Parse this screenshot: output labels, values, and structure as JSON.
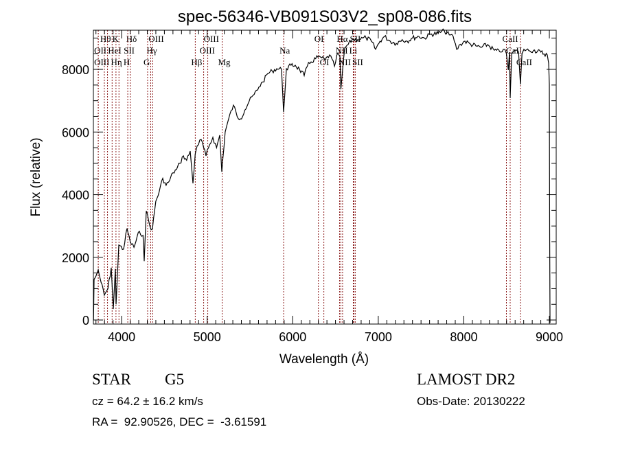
{
  "chart_data": {
    "type": "line",
    "title": "spec-56346-VB091S03V2_sp08-086.fits",
    "xlabel": "Wavelength (Å)",
    "ylabel": "Flux (relative)",
    "xlim": [
      3670,
      9080
    ],
    "ylim": [
      -130,
      9250
    ],
    "xticks": [
      4000,
      5000,
      6000,
      7000,
      8000,
      9000
    ],
    "yticks": [
      0,
      2000,
      4000,
      6000,
      8000
    ],
    "x_minor_step": 100,
    "y_minor_step": 500,
    "grid": false,
    "line_color": "#000000",
    "marker_color": "#8b1a1a",
    "series": [
      {
        "name": "spectrum",
        "x": [
          3672,
          3678,
          3700,
          3726,
          3760,
          3798,
          3840,
          3879,
          3903,
          3927,
          3935,
          3967,
          4023,
          4063,
          4100,
          4144,
          4208,
          4250,
          4264,
          4288,
          4330,
          4360,
          4400,
          4440,
          4481,
          4520,
          4561,
          4600,
          4641,
          4680,
          4722,
          4760,
          4802,
          4834,
          4860,
          4882,
          4930,
          4986,
          5030,
          5067,
          5110,
          5147,
          5171,
          5210,
          5251,
          5307,
          5350,
          5388,
          5440,
          5492,
          5550,
          5604,
          5650,
          5709,
          5760,
          5813,
          5869,
          5893,
          5926,
          5980,
          6030,
          6080,
          6134,
          6170,
          6215,
          6295,
          6327,
          6380,
          6431,
          6488,
          6528,
          6552,
          6563,
          6608,
          6650,
          6696,
          6760,
          6820,
          6857,
          6920,
          6969,
          7020,
          7073,
          7140,
          7210,
          7280,
          7338,
          7400,
          7475,
          7540,
          7611,
          7700,
          7772,
          7830,
          7876,
          7916,
          7960,
          8013,
          8080,
          8141,
          8200,
          8277,
          8357,
          8420,
          8462,
          8498,
          8520,
          8534,
          8542,
          8560,
          8599,
          8640,
          8662,
          8680,
          8703,
          8760,
          8815,
          8900,
          8976,
          8992,
          9000,
          9004,
          9008
        ],
        "y": [
          0,
          1290,
          1400,
          1600,
          1200,
          790,
          1000,
          1670,
          350,
          1630,
          500,
          2390,
          2260,
          2920,
          2500,
          2320,
          2830,
          2700,
          1880,
          3480,
          3000,
          2900,
          3790,
          4100,
          4520,
          4300,
          4450,
          4700,
          4800,
          5000,
          5240,
          5100,
          5390,
          4360,
          5300,
          5550,
          5760,
          5240,
          5600,
          5830,
          5500,
          5900,
          4730,
          6000,
          6420,
          6860,
          6500,
          6420,
          6700,
          6990,
          7200,
          7430,
          7600,
          7870,
          7950,
          8020,
          8000,
          6640,
          8020,
          8130,
          8130,
          8000,
          7800,
          8100,
          8240,
          8390,
          8390,
          8300,
          8460,
          8100,
          8530,
          8400,
          7360,
          8680,
          8800,
          8960,
          8950,
          9000,
          9010,
          8900,
          8640,
          8900,
          9050,
          8900,
          8830,
          8950,
          8900,
          9000,
          9050,
          9000,
          9120,
          9150,
          9230,
          9100,
          9050,
          8640,
          8800,
          8900,
          8800,
          8750,
          8700,
          8790,
          8610,
          8560,
          8640,
          8500,
          7980,
          8550,
          7080,
          8500,
          8610,
          8550,
          7520,
          8500,
          8640,
          8600,
          8610,
          8550,
          8460,
          8200,
          7520,
          2760,
          -90
        ]
      }
    ],
    "line_markers": [
      {
        "label": "Hθ",
        "wavelength": 3798,
        "row": 0
      },
      {
        "label": "K",
        "wavelength": 3934,
        "row": 0
      },
      {
        "label": "Hδ",
        "wavelength": 4102,
        "row": 0
      },
      {
        "label": "OIII",
        "wavelength": 4363,
        "row": 0
      },
      {
        "label": "OIII",
        "wavelength": 5007,
        "row": 0
      },
      {
        "label": "OI",
        "wavelength": 6300,
        "row": 0
      },
      {
        "label": "Hα",
        "wavelength": 6563,
        "row": 0
      },
      {
        "label": "SII",
        "wavelength": 6716,
        "row": 0
      },
      {
        "label": "CaII",
        "wavelength": 8498,
        "row": 0
      },
      {
        "label": "OII",
        "wavelength": 3727,
        "row": 1
      },
      {
        "label": "HeI",
        "wavelength": 3889,
        "row": 1
      },
      {
        "label": "SII",
        "wavelength": 4072,
        "row": 1
      },
      {
        "label": "Hγ",
        "wavelength": 4340,
        "row": 1
      },
      {
        "label": "OIII",
        "wavelength": 4959,
        "row": 1
      },
      {
        "label": "Na",
        "wavelength": 5894,
        "row": 1
      },
      {
        "label": "NII",
        "wavelength": 6548,
        "row": 1
      },
      {
        "label": "Li",
        "wavelength": 6708,
        "row": 1
      },
      {
        "label": "CaII",
        "wavelength": 8542,
        "row": 1
      },
      {
        "label": "OIII",
        "wavelength": 3727,
        "row": 2
      },
      {
        "label": "Hη",
        "wavelength": 3835,
        "row": 2
      },
      {
        "label": "H",
        "wavelength": 3969,
        "row": 2
      },
      {
        "label": "G",
        "wavelength": 4304,
        "row": 2
      },
      {
        "label": "Hβ",
        "wavelength": 4861,
        "row": 2
      },
      {
        "label": "Mg",
        "wavelength": 5175,
        "row": 2
      },
      {
        "label": "OI",
        "wavelength": 6364,
        "row": 2
      },
      {
        "label": "NII",
        "wavelength": 6583,
        "row": 2
      },
      {
        "label": "SII",
        "wavelength": 6731,
        "row": 2
      },
      {
        "label": "CaII",
        "wavelength": 8662,
        "row": 2
      }
    ]
  },
  "info": {
    "object_class": "STAR",
    "subclass": "G5",
    "survey": "LAMOST DR2",
    "redshift": "cz = 64.2 ± 16.2 km/s",
    "obs_date": "Obs-Date: 20130222",
    "coords": "RA =  92.90526, DEC =  -3.61591"
  }
}
